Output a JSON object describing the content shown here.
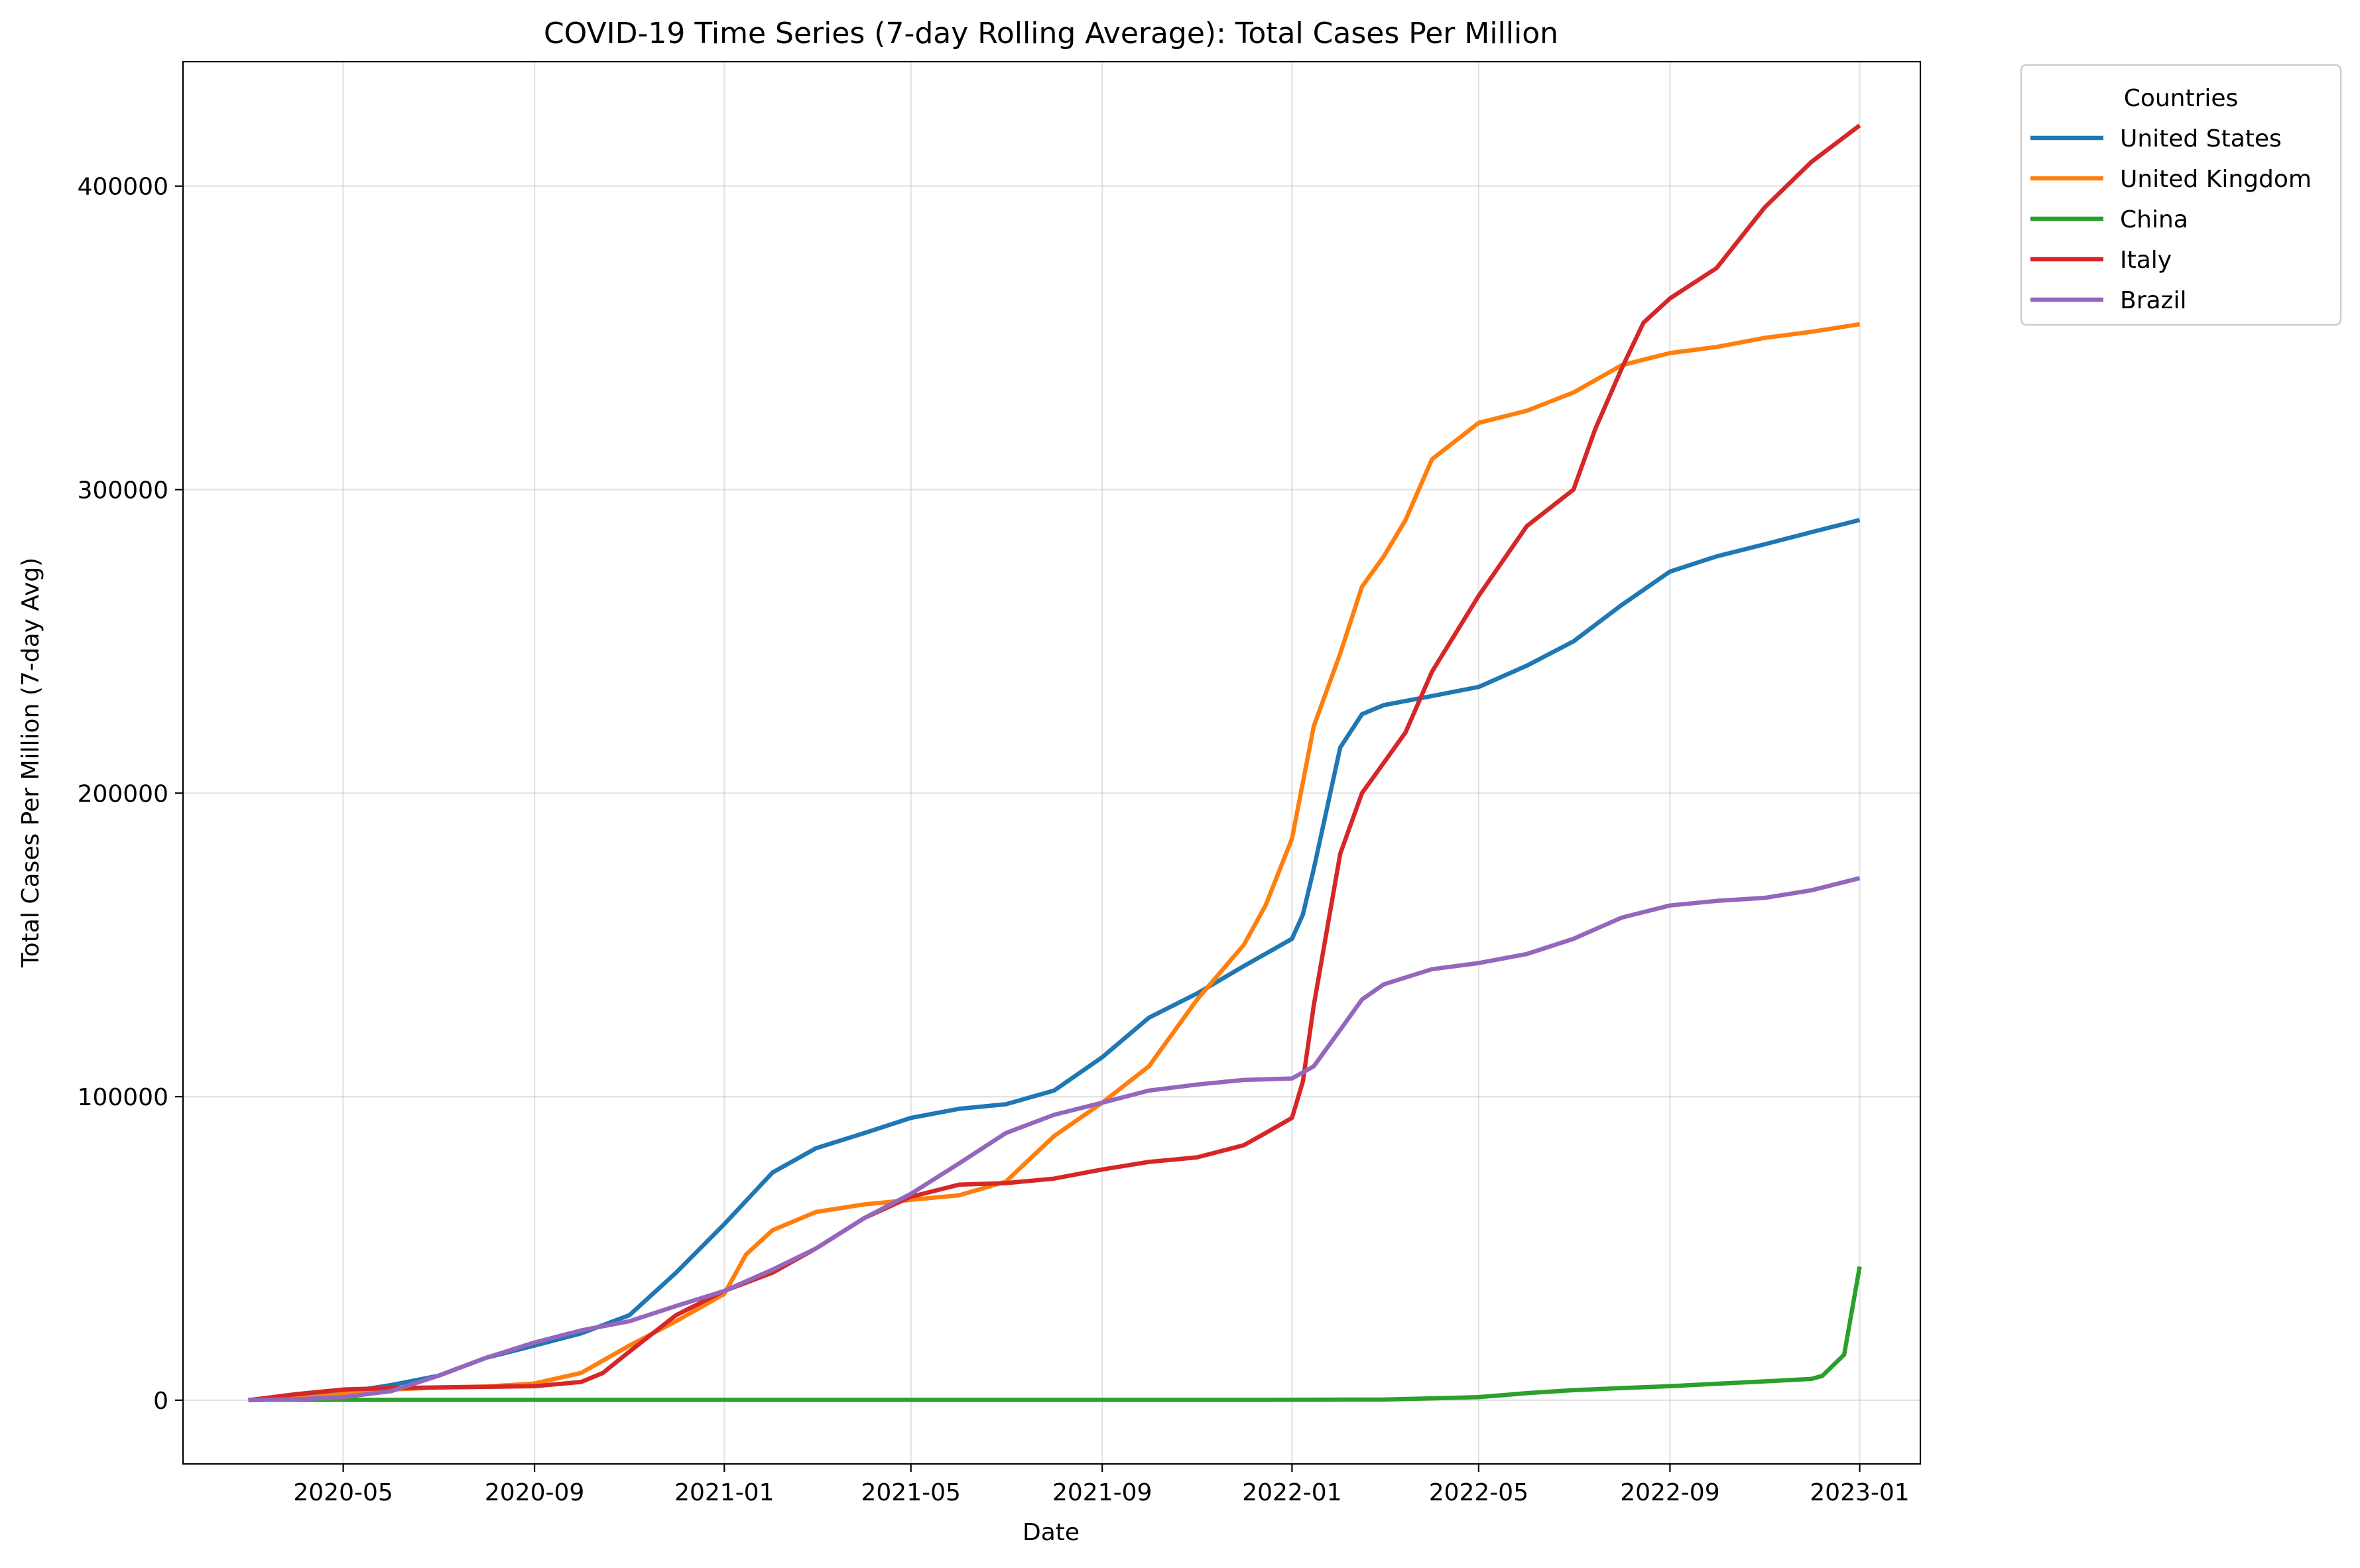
{
  "chart_data": {
    "type": "line",
    "title": "COVID-19 Time Series (7-day Rolling Average): Total Cases Per Million",
    "xlabel": "Date",
    "ylabel": "Total Cases Per Million (7-day Avg)",
    "x_type": "date",
    "xlim": [
      "2020-01-19",
      "2023-02-09"
    ],
    "ylim": [
      -21000,
      441000
    ],
    "x_ticks": [
      "2020-05-01",
      "2020-09-01",
      "2021-01-01",
      "2021-05-01",
      "2021-09-01",
      "2022-01-01",
      "2022-05-01",
      "2022-09-01",
      "2023-01-01"
    ],
    "x_tick_labels": [
      "2020-05",
      "2020-09",
      "2021-01",
      "2021-05",
      "2021-09",
      "2022-01",
      "2022-05",
      "2022-09",
      "2023-01"
    ],
    "y_ticks": [
      0,
      100000,
      200000,
      300000,
      400000
    ],
    "y_tick_labels": [
      "0",
      "100000",
      "200000",
      "300000",
      "400000"
    ],
    "grid": true,
    "legend": {
      "title": "Countries",
      "position": "outside-top-right"
    },
    "series": [
      {
        "name": "United States",
        "color": "#1f77b4",
        "points": [
          [
            "2020-03-01",
            0
          ],
          [
            "2020-04-01",
            1000
          ],
          [
            "2020-05-01",
            2500
          ],
          [
            "2020-06-01",
            5000
          ],
          [
            "2020-07-01",
            8000
          ],
          [
            "2020-08-01",
            14000
          ],
          [
            "2020-09-01",
            18000
          ],
          [
            "2020-10-01",
            22000
          ],
          [
            "2020-11-01",
            28000
          ],
          [
            "2020-12-01",
            42000
          ],
          [
            "2021-01-01",
            58000
          ],
          [
            "2021-02-01",
            75000
          ],
          [
            "2021-03-01",
            83000
          ],
          [
            "2021-04-01",
            88000
          ],
          [
            "2021-05-01",
            93000
          ],
          [
            "2021-06-01",
            96000
          ],
          [
            "2021-07-01",
            97500
          ],
          [
            "2021-08-01",
            102000
          ],
          [
            "2021-09-01",
            113000
          ],
          [
            "2021-10-01",
            126000
          ],
          [
            "2021-11-01",
            134000
          ],
          [
            "2021-12-01",
            143000
          ],
          [
            "2022-01-01",
            152000
          ],
          [
            "2022-01-08",
            160000
          ],
          [
            "2022-01-15",
            175000
          ],
          [
            "2022-02-01",
            215000
          ],
          [
            "2022-02-15",
            226000
          ],
          [
            "2022-03-01",
            229000
          ],
          [
            "2022-04-01",
            232000
          ],
          [
            "2022-05-01",
            235000
          ],
          [
            "2022-06-01",
            242000
          ],
          [
            "2022-07-01",
            250000
          ],
          [
            "2022-08-01",
            262000
          ],
          [
            "2022-09-01",
            273000
          ],
          [
            "2022-10-01",
            278000
          ],
          [
            "2022-11-01",
            282000
          ],
          [
            "2022-12-01",
            286000
          ],
          [
            "2023-01-01",
            290000
          ]
        ]
      },
      {
        "name": "United Kingdom",
        "color": "#ff7f0e",
        "points": [
          [
            "2020-03-01",
            0
          ],
          [
            "2020-04-01",
            500
          ],
          [
            "2020-05-01",
            2000
          ],
          [
            "2020-06-01",
            3500
          ],
          [
            "2020-07-01",
            4200
          ],
          [
            "2020-08-01",
            4500
          ],
          [
            "2020-09-01",
            5500
          ],
          [
            "2020-10-01",
            9000
          ],
          [
            "2020-11-01",
            18000
          ],
          [
            "2020-12-01",
            26000
          ],
          [
            "2021-01-01",
            35000
          ],
          [
            "2021-01-15",
            48000
          ],
          [
            "2021-02-01",
            56000
          ],
          [
            "2021-03-01",
            62000
          ],
          [
            "2021-04-01",
            64500
          ],
          [
            "2021-05-01",
            66000
          ],
          [
            "2021-06-01",
            67500
          ],
          [
            "2021-07-01",
            72000
          ],
          [
            "2021-08-01",
            87000
          ],
          [
            "2021-09-01",
            98000
          ],
          [
            "2021-10-01",
            110000
          ],
          [
            "2021-11-01",
            132000
          ],
          [
            "2021-12-01",
            150000
          ],
          [
            "2021-12-15",
            163000
          ],
          [
            "2022-01-01",
            185000
          ],
          [
            "2022-01-15",
            222000
          ],
          [
            "2022-02-01",
            246000
          ],
          [
            "2022-02-15",
            268000
          ],
          [
            "2022-03-01",
            278000
          ],
          [
            "2022-03-15",
            290000
          ],
          [
            "2022-04-01",
            310000
          ],
          [
            "2022-05-01",
            322000
          ],
          [
            "2022-06-01",
            326000
          ],
          [
            "2022-07-01",
            332000
          ],
          [
            "2022-08-01",
            341000
          ],
          [
            "2022-09-01",
            345000
          ],
          [
            "2022-10-01",
            347000
          ],
          [
            "2022-11-01",
            350000
          ],
          [
            "2022-12-01",
            352000
          ],
          [
            "2023-01-01",
            354500
          ]
        ]
      },
      {
        "name": "China",
        "color": "#2ca02c",
        "points": [
          [
            "2020-03-01",
            100
          ],
          [
            "2020-06-01",
            100
          ],
          [
            "2020-09-01",
            100
          ],
          [
            "2020-12-01",
            100
          ],
          [
            "2021-03-01",
            100
          ],
          [
            "2021-06-01",
            100
          ],
          [
            "2021-09-01",
            100
          ],
          [
            "2021-12-01",
            100
          ],
          [
            "2022-03-01",
            200
          ],
          [
            "2022-04-01",
            600
          ],
          [
            "2022-05-01",
            1000
          ],
          [
            "2022-06-01",
            2300
          ],
          [
            "2022-07-01",
            3300
          ],
          [
            "2022-08-01",
            4000
          ],
          [
            "2022-09-01",
            4600
          ],
          [
            "2022-10-01",
            5400
          ],
          [
            "2022-11-01",
            6200
          ],
          [
            "2022-12-01",
            7000
          ],
          [
            "2022-12-08",
            8000
          ],
          [
            "2022-12-22",
            15000
          ],
          [
            "2023-01-01",
            44000
          ]
        ]
      },
      {
        "name": "Italy",
        "color": "#d62728",
        "points": [
          [
            "2020-03-01",
            0
          ],
          [
            "2020-04-01",
            2000
          ],
          [
            "2020-05-01",
            3500
          ],
          [
            "2020-06-01",
            4000
          ],
          [
            "2020-07-01",
            4200
          ],
          [
            "2020-08-01",
            4400
          ],
          [
            "2020-09-01",
            4600
          ],
          [
            "2020-10-01",
            6000
          ],
          [
            "2020-10-15",
            9000
          ],
          [
            "2020-11-01",
            16000
          ],
          [
            "2020-12-01",
            28000
          ],
          [
            "2021-01-01",
            36000
          ],
          [
            "2021-02-01",
            42000
          ],
          [
            "2021-03-01",
            50000
          ],
          [
            "2021-04-01",
            60000
          ],
          [
            "2021-05-01",
            67000
          ],
          [
            "2021-06-01",
            71000
          ],
          [
            "2021-07-01",
            71500
          ],
          [
            "2021-08-01",
            73000
          ],
          [
            "2021-09-01",
            76000
          ],
          [
            "2021-10-01",
            78500
          ],
          [
            "2021-11-01",
            80000
          ],
          [
            "2021-12-01",
            84000
          ],
          [
            "2021-12-15",
            88000
          ],
          [
            "2022-01-01",
            93000
          ],
          [
            "2022-01-08",
            105000
          ],
          [
            "2022-01-15",
            130000
          ],
          [
            "2022-02-01",
            180000
          ],
          [
            "2022-02-15",
            200000
          ],
          [
            "2022-03-01",
            210000
          ],
          [
            "2022-03-15",
            220000
          ],
          [
            "2022-04-01",
            240000
          ],
          [
            "2022-05-01",
            265000
          ],
          [
            "2022-06-01",
            288000
          ],
          [
            "2022-07-01",
            300000
          ],
          [
            "2022-07-15",
            320000
          ],
          [
            "2022-08-01",
            340000
          ],
          [
            "2022-08-15",
            355000
          ],
          [
            "2022-09-01",
            363000
          ],
          [
            "2022-10-01",
            373000
          ],
          [
            "2022-11-01",
            393000
          ],
          [
            "2022-12-01",
            408000
          ],
          [
            "2023-01-01",
            420000
          ]
        ]
      },
      {
        "name": "Brazil",
        "color": "#9467bd",
        "points": [
          [
            "2020-03-01",
            0
          ],
          [
            "2020-04-01",
            300
          ],
          [
            "2020-05-01",
            1000
          ],
          [
            "2020-06-01",
            3000
          ],
          [
            "2020-07-01",
            8000
          ],
          [
            "2020-08-01",
            14000
          ],
          [
            "2020-09-01",
            19000
          ],
          [
            "2020-10-01",
            23000
          ],
          [
            "2020-11-01",
            26000
          ],
          [
            "2020-12-01",
            31000
          ],
          [
            "2021-01-01",
            36000
          ],
          [
            "2021-02-01",
            43000
          ],
          [
            "2021-03-01",
            50000
          ],
          [
            "2021-04-01",
            60000
          ],
          [
            "2021-05-01",
            68000
          ],
          [
            "2021-06-01",
            78000
          ],
          [
            "2021-07-01",
            88000
          ],
          [
            "2021-08-01",
            94000
          ],
          [
            "2021-09-01",
            98000
          ],
          [
            "2021-10-01",
            102000
          ],
          [
            "2021-11-01",
            104000
          ],
          [
            "2021-12-01",
            105500
          ],
          [
            "2022-01-01",
            106000
          ],
          [
            "2022-01-15",
            110000
          ],
          [
            "2022-02-01",
            122000
          ],
          [
            "2022-02-15",
            132000
          ],
          [
            "2022-03-01",
            137000
          ],
          [
            "2022-04-01",
            142000
          ],
          [
            "2022-05-01",
            144000
          ],
          [
            "2022-06-01",
            147000
          ],
          [
            "2022-07-01",
            152000
          ],
          [
            "2022-08-01",
            159000
          ],
          [
            "2022-09-01",
            163000
          ],
          [
            "2022-10-01",
            164500
          ],
          [
            "2022-11-01",
            165500
          ],
          [
            "2022-12-01",
            168000
          ],
          [
            "2023-01-01",
            172000
          ]
        ]
      }
    ]
  }
}
